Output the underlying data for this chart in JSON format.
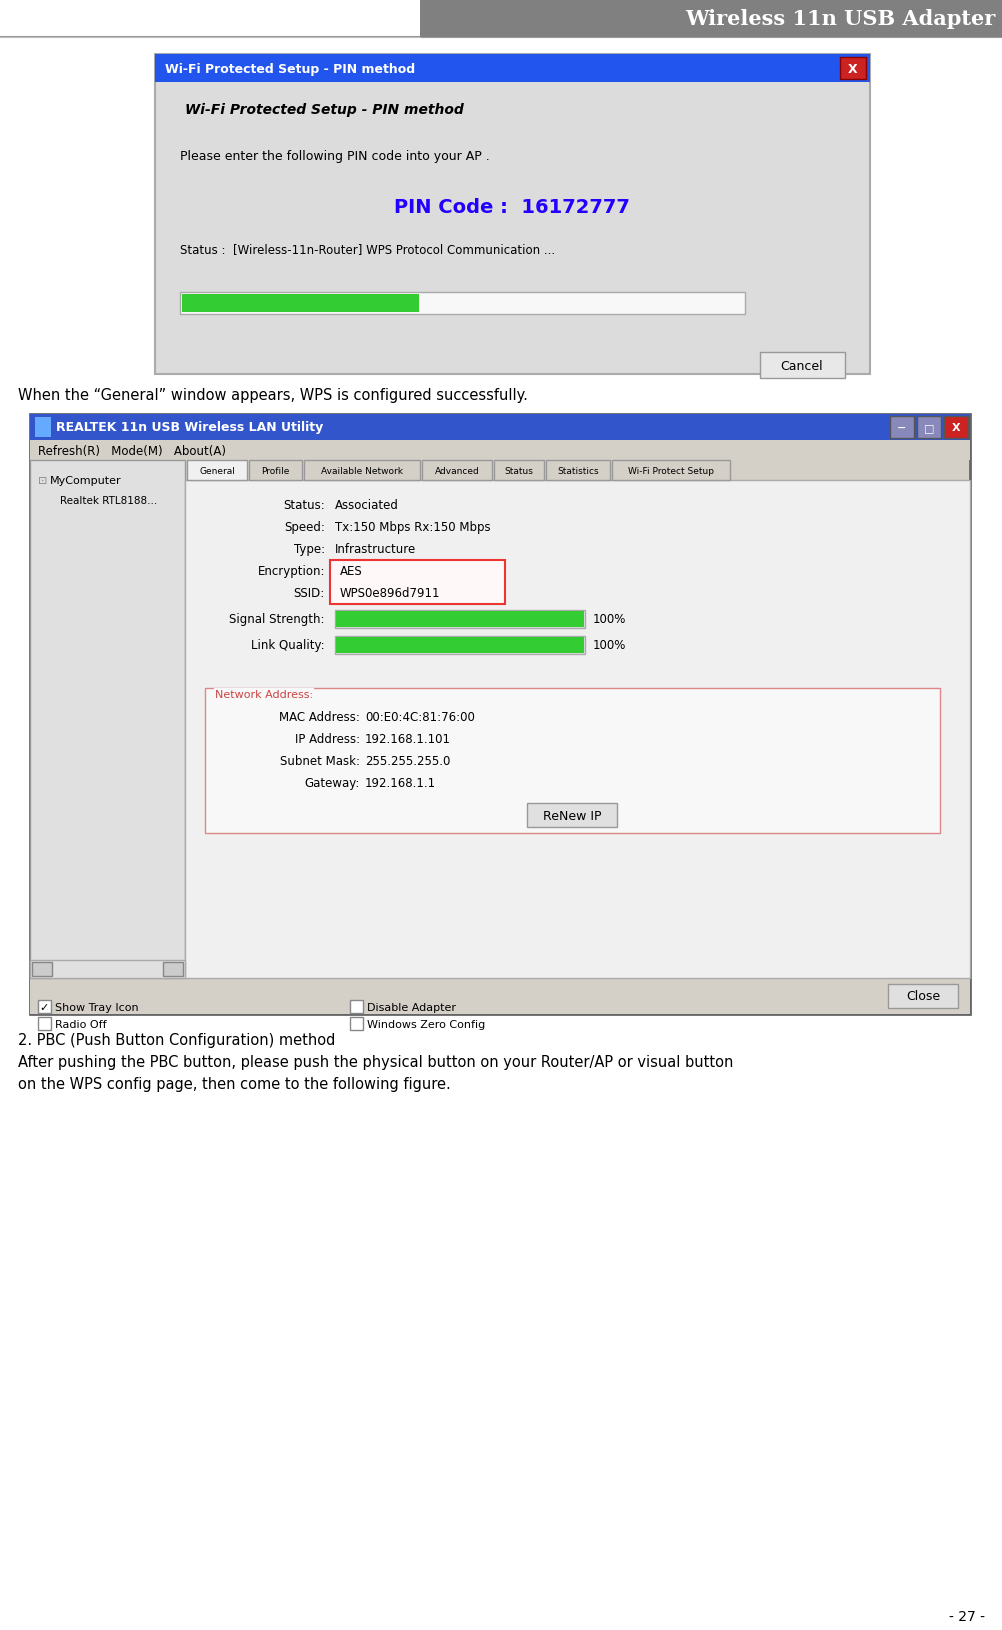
{
  "page_width": 10.03,
  "page_height": 16.31,
  "bg_color": "#ffffff",
  "header_bg": "#808080",
  "header_text": "Wireless 11n USB Adapter",
  "header_text_color": "#ffffff",
  "body_text_color": "#000000",
  "footer_text": "- 27 -",
  "section1_text": "When the “General” window appears, WPS is configured successfully.",
  "section2_title": "2. PBC (Push Button Configuration) method",
  "section2_body1": "After pushing the PBC button, please push the physical button on your Router/AP or visual button",
  "section2_body2": "on the WPS config page, then come to the following figure.",
  "pin_dialog": {
    "title_bar_color": "#2255ee",
    "title_bar_text": "Wi-Fi Protected Setup - PIN method",
    "title_bar_text_color": "#ffffff",
    "close_btn_color": "#cc2222",
    "body_bg": "#dcdcdc",
    "heading": "Wi-Fi Protected Setup - PIN method",
    "line1": "Please enter the following PIN code into your AP .",
    "pin_code_label": "PIN Code :  16172777",
    "pin_code_color": "#2200ff",
    "status_line": "Status :  [Wireless-11n-Router] WPS Protocol Communication ...",
    "progress_color": "#33cc33",
    "cancel_btn_text": "Cancel"
  },
  "general_dialog": {
    "title_bar_color": "#3355cc",
    "title_bar_text": "REALTEK 11n USB Wireless LAN Utility",
    "title_bar_text_color": "#ffffff",
    "menu_bar": "Refresh(R)   Mode(M)   About(A)",
    "menu_bar_bg": "#d4d0c8",
    "left_panel_bg": "#e0e0e0",
    "tabs": [
      "General",
      "Profile",
      "Available Network",
      "Advanced",
      "Status",
      "Statistics",
      "Wi-Fi Protect Setup"
    ],
    "active_tab": "General",
    "progress_color": "#33cc33",
    "encryption_box_color": "#ee3333",
    "network_section_border": "#dd8888",
    "network_section_label_color": "#cc4444",
    "bottom_bar_bg": "#d4d0c8",
    "show_tray": "Show Tray Icon",
    "radio_off": "Radio Off",
    "disable_adapter": "Disable Adapter",
    "win_zero": "Windows Zero Config",
    "close_btn": "Close",
    "body_bg": "#f0f0f0",
    "content_bg": "#f0f0f0"
  }
}
